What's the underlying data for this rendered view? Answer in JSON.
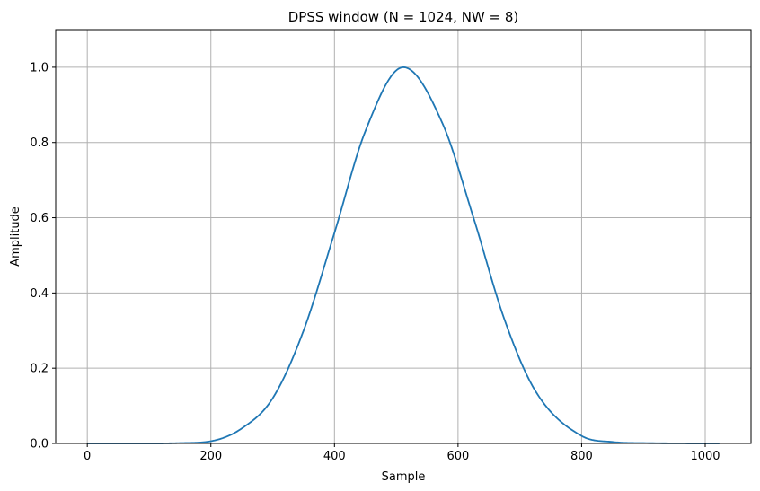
{
  "chart_data": {
    "type": "line",
    "title": "DPSS window (N = 1024, NW = 8)",
    "xlabel": "Sample",
    "ylabel": "Amplitude",
    "xlim": [
      -51.15,
      1074.15
    ],
    "ylim": [
      0.0,
      1.1
    ],
    "xticks": [
      0,
      200,
      400,
      600,
      800,
      1000
    ],
    "xtick_labels": [
      "0",
      "200",
      "400",
      "600",
      "800",
      "1000"
    ],
    "yticks": [
      0.0,
      0.2,
      0.4,
      0.6,
      0.8,
      1.0
    ],
    "ytick_labels": [
      "0.0",
      "0.2",
      "0.4",
      "0.6",
      "0.8",
      "1.0"
    ],
    "grid": true,
    "series": [
      {
        "color": "#1f77b4",
        "x": [
          0,
          100,
          150,
          200,
          250,
          300,
          350,
          400,
          450,
          511.5,
          575,
          625,
          675,
          725,
          800,
          850,
          900,
          1023
        ],
        "y": [
          0.0,
          0.0,
          0.001,
          0.006,
          0.04,
          0.12,
          0.3,
          0.56,
          0.83,
          1.0,
          0.85,
          0.6,
          0.33,
          0.14,
          0.02,
          0.004,
          0.001,
          0.0
        ]
      }
    ]
  }
}
